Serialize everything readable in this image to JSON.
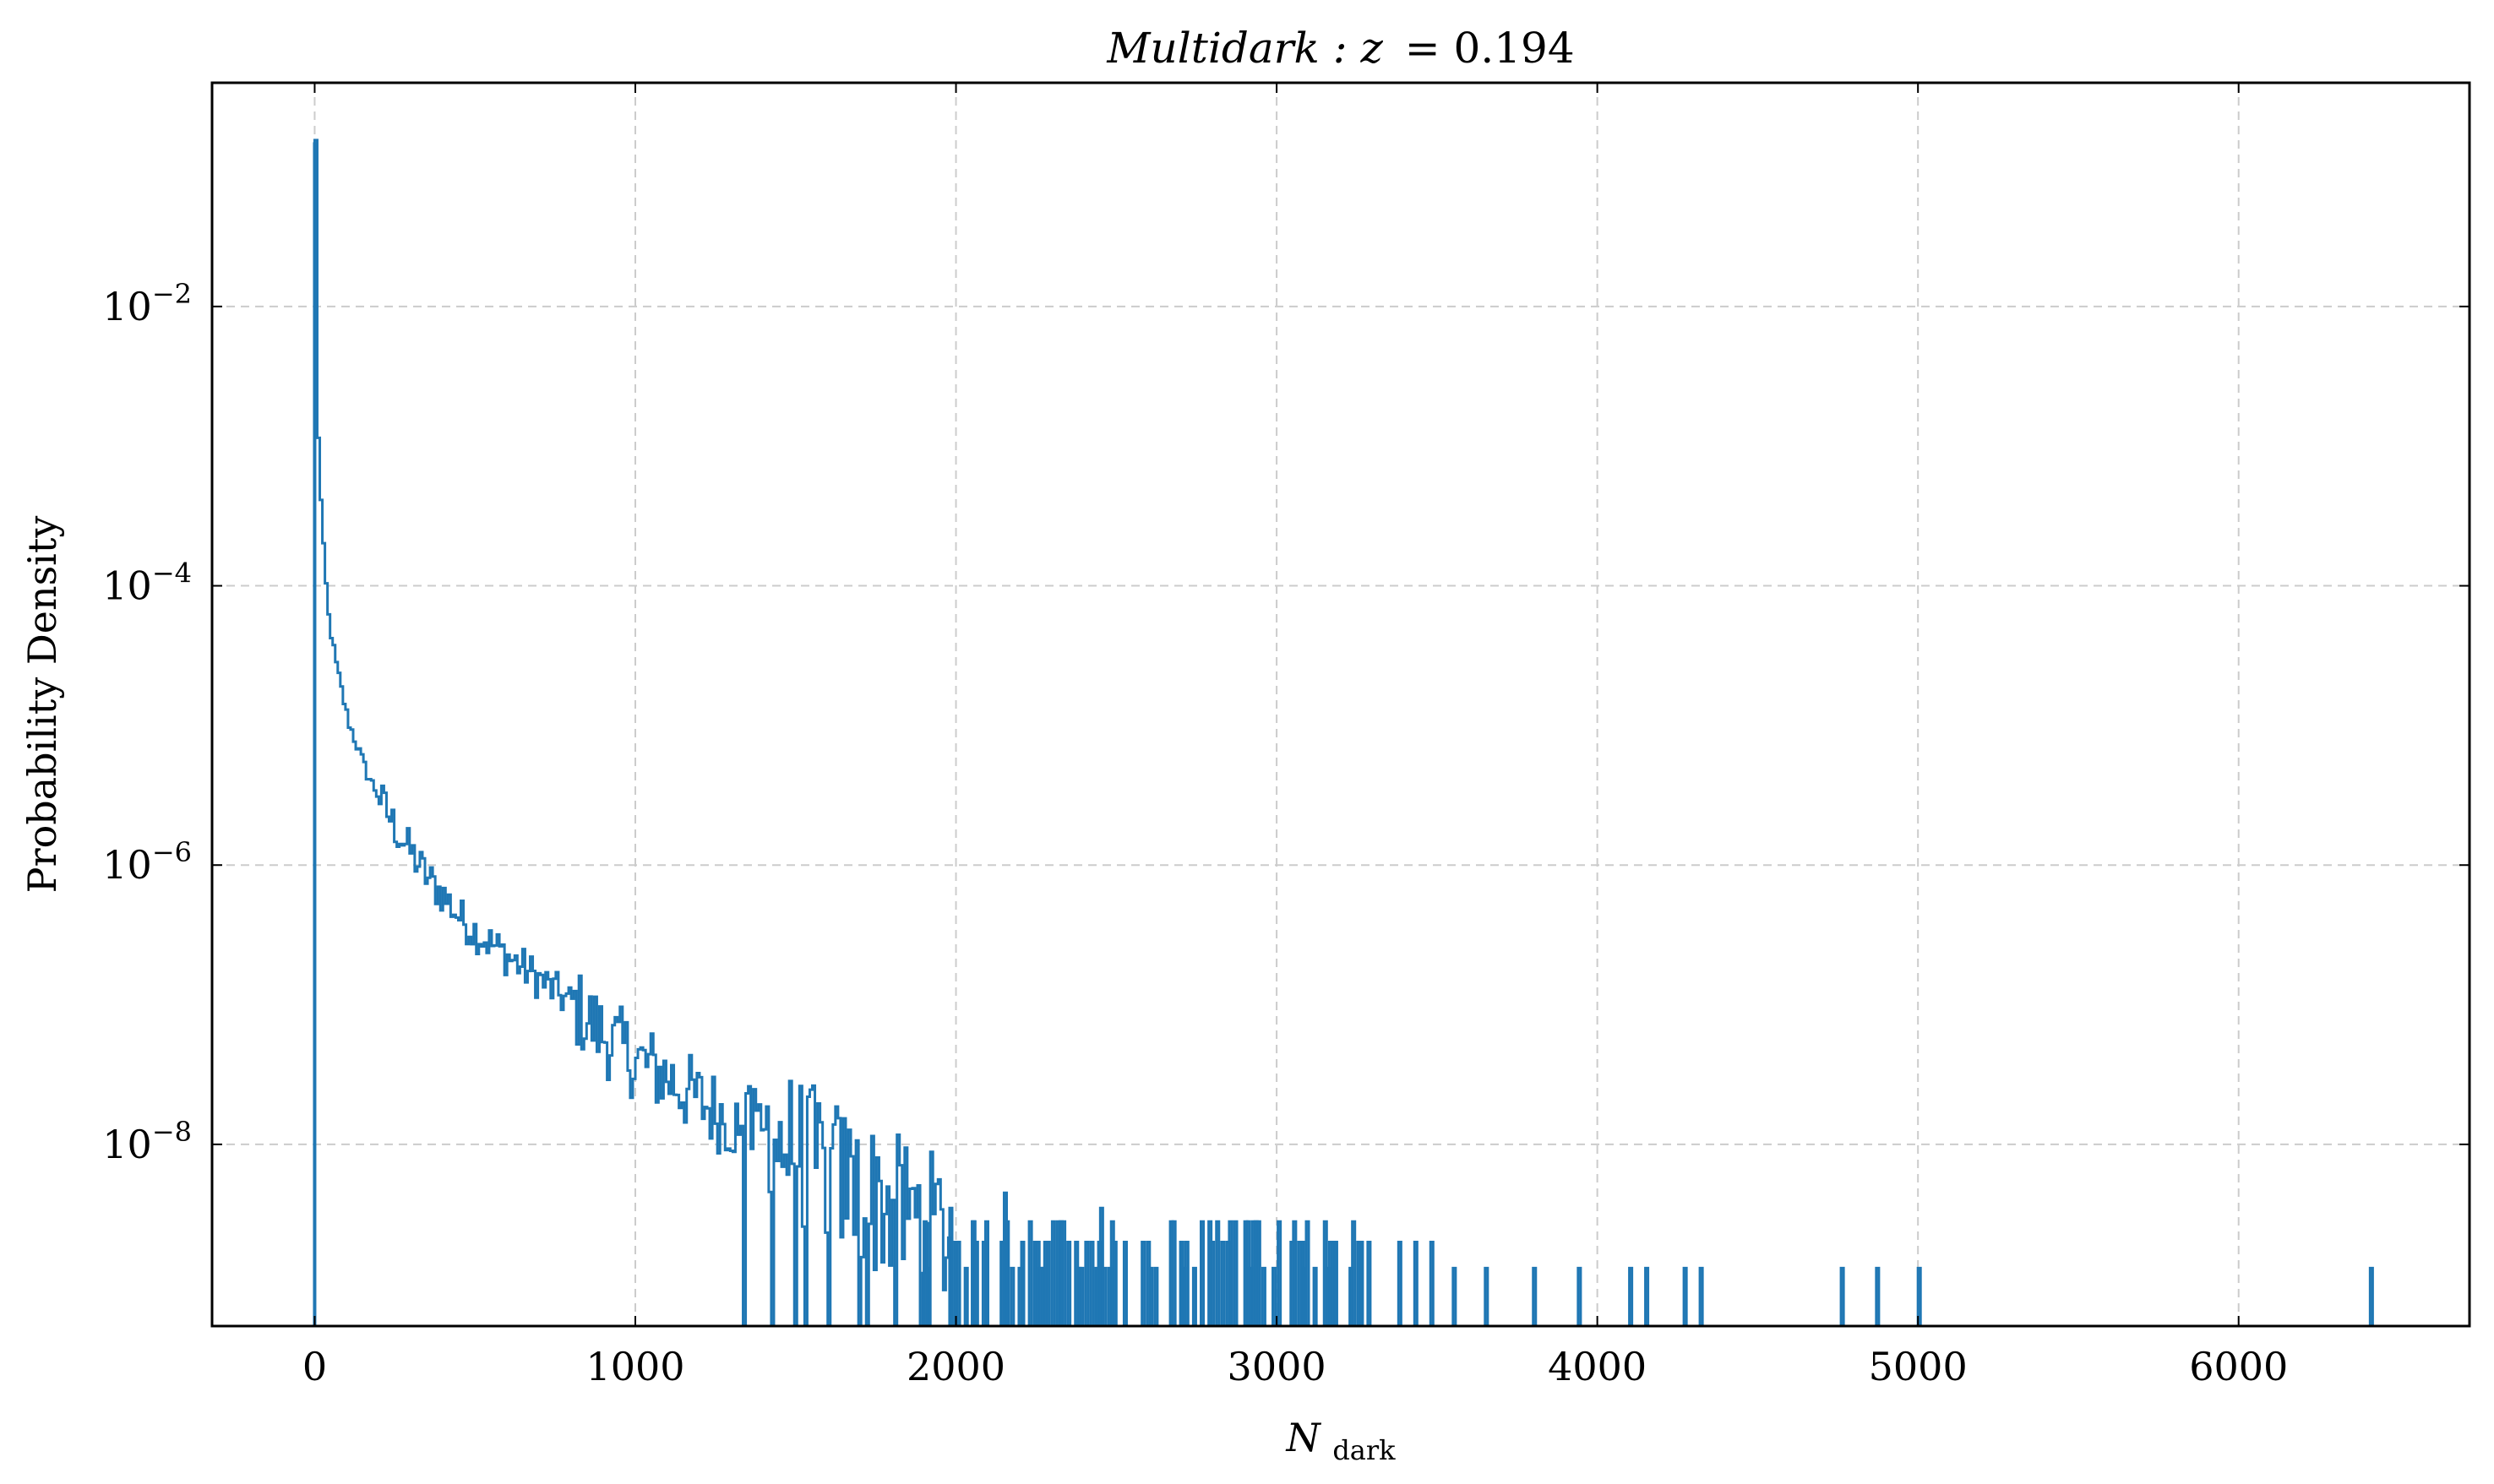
{
  "chart_data": {
    "type": "histogram",
    "title": "Multidark : z = 0.194",
    "title_parts": {
      "italic": "Multidark : z",
      "value": "= 0.194"
    },
    "xlabel": "N_dark",
    "xlabel_parts": {
      "main": "N",
      "sub": "dark"
    },
    "ylabel": "Probability Density",
    "xlim": [
      -320,
      6720
    ],
    "ylim": [
      5e-10,
      0.4
    ],
    "yscale": "log",
    "grid": true,
    "x_ticks": [
      0,
      1000,
      2000,
      3000,
      4000,
      5000,
      6000
    ],
    "x_tick_labels": [
      "0",
      "1000",
      "2000",
      "3000",
      "4000",
      "5000",
      "6000"
    ],
    "y_ticks": [
      1e-08,
      1e-06,
      0.0001,
      0.01
    ],
    "y_tick_labels": [
      {
        "base": "10",
        "exp": "−8"
      },
      {
        "base": "10",
        "exp": "−6"
      },
      {
        "base": "10",
        "exp": "−4"
      },
      {
        "base": "10",
        "exp": "−2"
      }
    ],
    "series_color": "#1f77b4",
    "bin_width": 8,
    "series": [
      {
        "values_note": "histogram density samples (x in N_dark, y density)",
        "points": [
          [
            0,
            0.15
          ],
          [
            8,
            0.0012
          ],
          [
            16,
            0.0004
          ],
          [
            24,
            0.00018
          ],
          [
            32,
            0.0001
          ],
          [
            40,
            6e-05
          ],
          [
            60,
            3e-05
          ],
          [
            80,
            1.8e-05
          ],
          [
            100,
            1.1e-05
          ],
          [
            130,
            7e-06
          ],
          [
            160,
            4.5e-06
          ],
          [
            200,
            3e-06
          ],
          [
            250,
            1.8e-06
          ],
          [
            300,
            1.2e-06
          ],
          [
            350,
            8e-07
          ],
          [
            400,
            6e-07
          ],
          [
            450,
            4.2e-07
          ],
          [
            500,
            3.3e-07
          ],
          [
            600,
            2.2e-07
          ],
          [
            700,
            1.5e-07
          ],
          [
            800,
            1e-07
          ],
          [
            900,
            6e-08
          ],
          [
            1000,
            4e-08
          ],
          [
            1100,
            3e-08
          ],
          [
            1200,
            2e-08
          ],
          [
            1300,
            1.5e-08
          ],
          [
            1400,
            1.2e-08
          ],
          [
            1500,
            9e-09
          ],
          [
            1600,
            6.5e-09
          ],
          [
            1700,
            4.5e-09
          ],
          [
            1800,
            3.5e-09
          ],
          [
            1900,
            2.8e-09
          ],
          [
            2000,
            2e-09
          ],
          [
            2200,
            1.5e-09
          ],
          [
            2400,
            1.2e-09
          ],
          [
            2600,
            1.1e-09
          ],
          [
            2800,
            1e-09
          ]
        ]
      }
    ],
    "sparse_spikes": [
      [
        1980,
        3.5e-09
      ],
      [
        2050,
        2.8e-09
      ],
      [
        2150,
        4.5e-09
      ],
      [
        2300,
        2.8e-09
      ],
      [
        2450,
        3.5e-09
      ],
      [
        2700,
        2e-09
      ],
      [
        2900,
        2.8e-09
      ],
      [
        3260,
        2e-09
      ],
      [
        3380,
        2e-09
      ],
      [
        3430,
        2e-09
      ],
      [
        3480,
        2e-09
      ],
      [
        3550,
        1.3e-09
      ],
      [
        3650,
        1.3e-09
      ],
      [
        3800,
        1.3e-09
      ],
      [
        3940,
        1.3e-09
      ],
      [
        4100,
        1.3e-09
      ],
      [
        4150,
        1.3e-09
      ],
      [
        4270,
        1.3e-09
      ],
      [
        4320,
        1.3e-09
      ],
      [
        4760,
        1.3e-09
      ],
      [
        4870,
        1.3e-09
      ],
      [
        5000,
        1.3e-09
      ],
      [
        6410,
        1.3e-09
      ]
    ]
  }
}
